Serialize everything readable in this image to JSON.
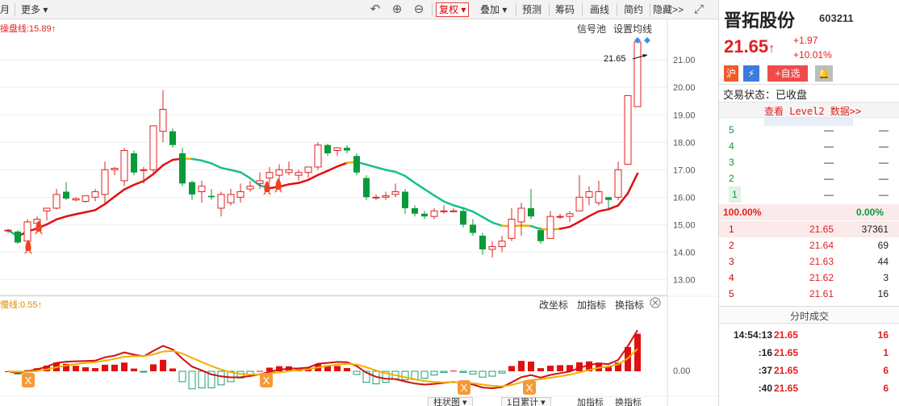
{
  "toolbar": {
    "left_cut": "月",
    "more": "更多",
    "fuquan": "复权",
    "diejia": "叠加",
    "yuce": "预测",
    "chouma": "筹码",
    "huaxian": "画线",
    "jianji": "简约",
    "yincang": "隐藏>>"
  },
  "main_chart": {
    "indicator_label": "操盘线:15.89",
    "signal_pool": "信号池",
    "set_ma": "设置均线",
    "last_price_label": "21.65",
    "y_ticks": [
      "21.00",
      "20.00",
      "19.00",
      "18.00",
      "17.00",
      "16.00",
      "15.00",
      "14.00",
      "13.00"
    ]
  },
  "sub_chart": {
    "indicator_label": "慢线:0.55",
    "change_coord": "改坐标",
    "add_indicator": "加指标",
    "swap_indicator": "换指标",
    "zero_tick": "0.00",
    "bottom_tab1": "柱状图",
    "bottom_tab2": "1日累计",
    "bottom_add": "加指标",
    "bottom_swap": "换指标"
  },
  "stock": {
    "name": "晋拓股份",
    "code": "603211",
    "price": "21.65",
    "change": "+1.97",
    "change_pct": "+10.01%",
    "market_badge": "沪",
    "add_watch": "+自选",
    "trade_status": "交易状态：已收盘",
    "level2": "查看 Level2 数据>>"
  },
  "sell_book": [
    {
      "level": "5",
      "price": "—",
      "vol": "—"
    },
    {
      "level": "4",
      "price": "—",
      "vol": "—"
    },
    {
      "level": "3",
      "price": "—",
      "vol": "—"
    },
    {
      "level": "2",
      "price": "—",
      "vol": "—"
    },
    {
      "level": "1",
      "price": "—",
      "vol": "—"
    }
  ],
  "ratio": {
    "left": "100.00%",
    "right": "0.00%"
  },
  "buy_book": [
    {
      "level": "1",
      "price": "21.65",
      "vol": "37361"
    },
    {
      "level": "2",
      "price": "21.64",
      "vol": "69"
    },
    {
      "level": "3",
      "price": "21.63",
      "vol": "44"
    },
    {
      "level": "4",
      "price": "21.62",
      "vol": "3"
    },
    {
      "level": "5",
      "price": "21.61",
      "vol": "16"
    }
  ],
  "ticks_title": "分时成交",
  "ticks": [
    {
      "time": "14:54:13",
      "price": "21.65",
      "vol": "16"
    },
    {
      "time": ":16",
      "price": "21.65",
      "vol": "1"
    },
    {
      "time": ":37",
      "price": "21.65",
      "vol": "6"
    },
    {
      "time": ":40",
      "price": "21.65",
      "vol": "6"
    }
  ],
  "colors": {
    "up": "#e02020",
    "down": "#0a9a3a",
    "ma_up": "#e01010",
    "ma_mid": "#f0b000",
    "ma_down": "#19c08a"
  },
  "chart_data": {
    "type": "candlestick",
    "candles": [
      [
        14.8,
        14.85,
        14.7,
        14.8
      ],
      [
        14.75,
        14.8,
        14.3,
        14.35
      ],
      [
        14.4,
        15.2,
        14.3,
        15.1
      ],
      [
        15.05,
        15.3,
        14.95,
        15.2
      ],
      [
        15.5,
        15.6,
        15.15,
        15.6
      ],
      [
        15.6,
        16.3,
        15.55,
        16.1
      ],
      [
        16.2,
        16.55,
        15.9,
        15.95
      ],
      [
        15.9,
        16.0,
        15.85,
        15.95
      ],
      [
        15.85,
        16.05,
        15.8,
        16.05
      ],
      [
        16.0,
        16.3,
        15.85,
        16.2
      ],
      [
        16.1,
        17.3,
        15.8,
        17.0
      ],
      [
        17.0,
        17.1,
        16.8,
        17.05
      ],
      [
        16.6,
        17.8,
        16.4,
        17.7
      ],
      [
        17.6,
        17.7,
        16.8,
        16.9
      ],
      [
        17.0,
        17.1,
        16.5,
        17.0
      ],
      [
        17.0,
        18.6,
        16.9,
        18.6
      ],
      [
        18.4,
        19.9,
        18.0,
        19.2
      ],
      [
        18.4,
        18.5,
        17.8,
        17.9
      ],
      [
        17.6,
        17.8,
        16.4,
        16.5
      ],
      [
        16.55,
        16.6,
        15.9,
        16.1
      ],
      [
        16.2,
        16.6,
        15.8,
        16.4
      ],
      [
        16.05,
        16.3,
        15.9,
        16.0
      ],
      [
        15.6,
        16.2,
        15.3,
        16.1
      ],
      [
        15.8,
        16.3,
        15.7,
        16.1
      ],
      [
        16.0,
        16.5,
        15.8,
        16.2
      ],
      [
        16.3,
        16.6,
        16.2,
        16.4
      ],
      [
        16.5,
        16.9,
        16.3,
        16.6
      ],
      [
        16.7,
        17.1,
        16.5,
        16.9
      ],
      [
        16.8,
        17.2,
        16.6,
        17.0
      ],
      [
        16.9,
        17.3,
        16.8,
        17.0
      ],
      [
        16.8,
        17.0,
        16.6,
        16.9
      ],
      [
        16.9,
        17.1,
        16.7,
        17.1
      ],
      [
        17.1,
        18.0,
        17.0,
        17.9
      ],
      [
        17.9,
        17.95,
        17.5,
        17.6
      ],
      [
        17.7,
        17.8,
        17.5,
        17.8
      ],
      [
        17.8,
        17.9,
        17.6,
        17.7
      ],
      [
        17.5,
        17.6,
        16.8,
        16.9
      ],
      [
        16.7,
        16.8,
        15.9,
        16.0
      ],
      [
        16.0,
        16.1,
        15.9,
        16.0
      ],
      [
        16.0,
        16.2,
        15.9,
        16.05
      ],
      [
        16.1,
        16.5,
        16.0,
        16.2
      ],
      [
        16.2,
        16.3,
        15.4,
        15.6
      ],
      [
        15.6,
        15.7,
        15.3,
        15.4
      ],
      [
        15.4,
        15.5,
        15.2,
        15.3
      ],
      [
        15.3,
        15.6,
        15.2,
        15.5
      ],
      [
        15.5,
        15.7,
        15.4,
        15.5
      ],
      [
        15.5,
        15.6,
        15.5,
        15.5
      ],
      [
        15.5,
        15.6,
        14.9,
        15.0
      ],
      [
        15.0,
        15.2,
        14.6,
        14.7
      ],
      [
        14.6,
        14.7,
        13.9,
        14.1
      ],
      [
        14.1,
        14.4,
        13.8,
        14.2
      ],
      [
        14.2,
        14.6,
        14.0,
        14.4
      ],
      [
        14.5,
        15.6,
        14.4,
        15.2
      ],
      [
        15.1,
        15.8,
        14.6,
        15.6
      ],
      [
        15.6,
        16.3,
        15.2,
        15.3
      ],
      [
        14.8,
        14.9,
        14.3,
        14.4
      ],
      [
        14.5,
        15.5,
        14.5,
        15.3
      ],
      [
        15.3,
        15.4,
        15.2,
        15.3
      ],
      [
        15.3,
        15.5,
        15.1,
        15.4
      ],
      [
        15.5,
        16.8,
        15.5,
        16.0
      ],
      [
        16.0,
        16.4,
        15.7,
        16.2
      ],
      [
        15.8,
        16.6,
        15.7,
        16.2
      ],
      [
        16.0,
        16.0,
        15.6,
        15.9
      ],
      [
        16.0,
        17.3,
        15.9,
        17.0
      ],
      [
        17.2,
        19.7,
        17.2,
        19.7
      ],
      [
        19.3,
        21.65,
        19.3,
        21.65
      ]
    ],
    "y_range": [
      12.6,
      22.3
    ]
  }
}
